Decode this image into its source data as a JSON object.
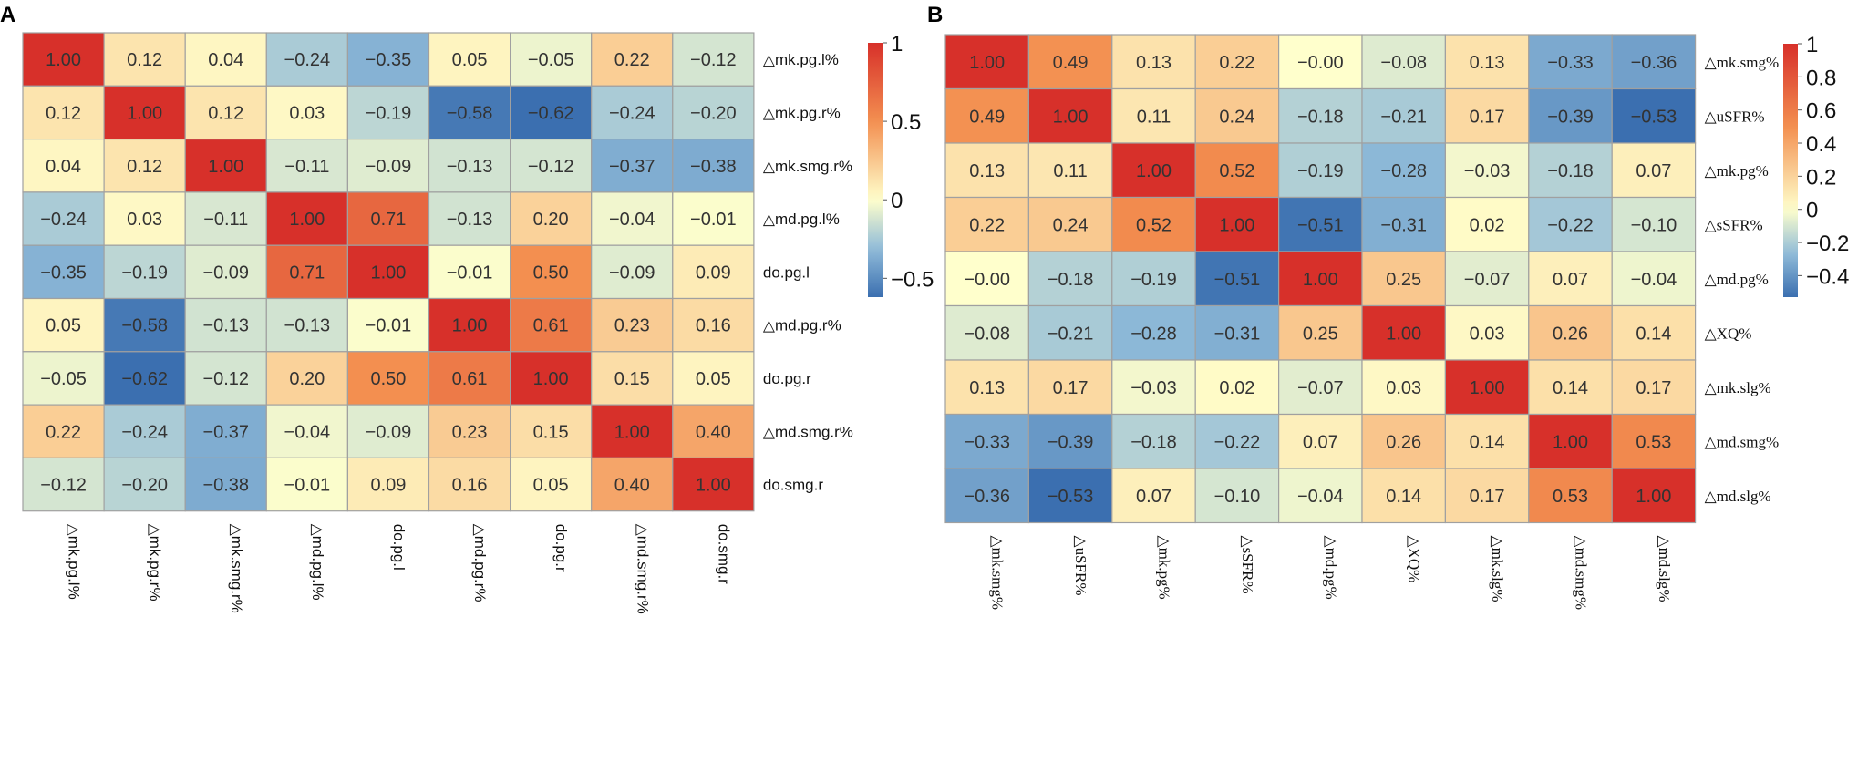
{
  "chart_data": [
    {
      "panel": "A",
      "type": "heatmap",
      "title": "",
      "labels": [
        "△mk.pg.l%",
        "△mk.pg.r%",
        "△mk.smg.r%",
        "△md.pg.l%",
        "do.pg.l",
        "△md.pg.r%",
        "do.pg.r",
        "△md.smg.r%",
        "do.smg.r"
      ],
      "values": [
        [
          1.0,
          0.12,
          0.04,
          -0.24,
          -0.35,
          0.05,
          -0.05,
          0.22,
          -0.12
        ],
        [
          0.12,
          1.0,
          0.12,
          0.03,
          -0.19,
          -0.58,
          -0.62,
          -0.24,
          -0.2
        ],
        [
          0.04,
          0.12,
          1.0,
          -0.11,
          -0.09,
          -0.13,
          -0.12,
          -0.37,
          -0.38
        ],
        [
          -0.24,
          0.03,
          -0.11,
          1.0,
          0.71,
          -0.13,
          0.2,
          -0.04,
          -0.01
        ],
        [
          -0.35,
          -0.19,
          -0.09,
          0.71,
          1.0,
          -0.01,
          0.5,
          -0.09,
          0.09
        ],
        [
          0.05,
          -0.58,
          -0.13,
          -0.13,
          -0.01,
          1.0,
          0.61,
          0.23,
          0.16
        ],
        [
          -0.05,
          -0.62,
          -0.12,
          0.2,
          0.5,
          0.61,
          1.0,
          0.15,
          0.05
        ],
        [
          0.22,
          -0.24,
          -0.37,
          -0.04,
          -0.09,
          0.23,
          0.15,
          1.0,
          0.4
        ],
        [
          -0.12,
          -0.2,
          -0.38,
          -0.01,
          0.09,
          0.16,
          0.05,
          0.4,
          1.0
        ]
      ],
      "colorbar": {
        "ticks": [
          1,
          0.5,
          0,
          -0.5
        ],
        "tick_labels": [
          "1",
          "0.5",
          "0",
          "−0.5"
        ],
        "range": [
          -0.62,
          1.0
        ]
      }
    },
    {
      "panel": "B",
      "type": "heatmap",
      "title": "",
      "labels": [
        "△mk.smg%",
        "△uSFR%",
        "△mk.pg%",
        "△sSFR%",
        "△md.pg%",
        "△XQ%",
        "△mk.slg%",
        "△md.smg%",
        "△md.slg%"
      ],
      "values": [
        [
          1.0,
          0.49,
          0.13,
          0.22,
          -0.0,
          -0.08,
          0.13,
          -0.33,
          -0.36
        ],
        [
          0.49,
          1.0,
          0.11,
          0.24,
          -0.18,
          -0.21,
          0.17,
          -0.39,
          -0.53
        ],
        [
          0.13,
          0.11,
          1.0,
          0.52,
          -0.19,
          -0.28,
          -0.03,
          -0.18,
          0.07
        ],
        [
          0.22,
          0.24,
          0.52,
          1.0,
          -0.51,
          -0.31,
          0.02,
          -0.22,
          -0.1
        ],
        [
          -0.0,
          -0.18,
          -0.19,
          -0.51,
          1.0,
          0.25,
          -0.07,
          0.07,
          -0.04
        ],
        [
          -0.08,
          -0.21,
          -0.28,
          -0.31,
          0.25,
          1.0,
          0.03,
          0.26,
          0.14
        ],
        [
          0.13,
          0.17,
          -0.03,
          0.02,
          -0.07,
          0.03,
          1.0,
          0.14,
          0.17
        ],
        [
          -0.33,
          -0.39,
          -0.18,
          -0.22,
          0.07,
          0.26,
          0.14,
          1.0,
          0.53
        ],
        [
          -0.36,
          -0.53,
          0.07,
          -0.1,
          -0.04,
          0.14,
          0.17,
          0.53,
          1.0
        ]
      ],
      "colorbar": {
        "ticks": [
          1,
          0.8,
          0.6,
          0.4,
          0.2,
          0,
          -0.2,
          -0.4
        ],
        "tick_labels": [
          "1",
          "0.8",
          "0.6",
          "0.4",
          "0.2",
          "0",
          "−0.2",
          "−0.4"
        ],
        "range": [
          -0.53,
          1.0
        ]
      }
    }
  ],
  "panels": [
    {
      "letter": "A"
    },
    {
      "letter": "B"
    }
  ],
  "colors": {
    "low": "#3b6fb0",
    "mid": "#ffffcc",
    "high": "#d7302a",
    "grid": "#a0a0a0",
    "text": "#333333"
  }
}
